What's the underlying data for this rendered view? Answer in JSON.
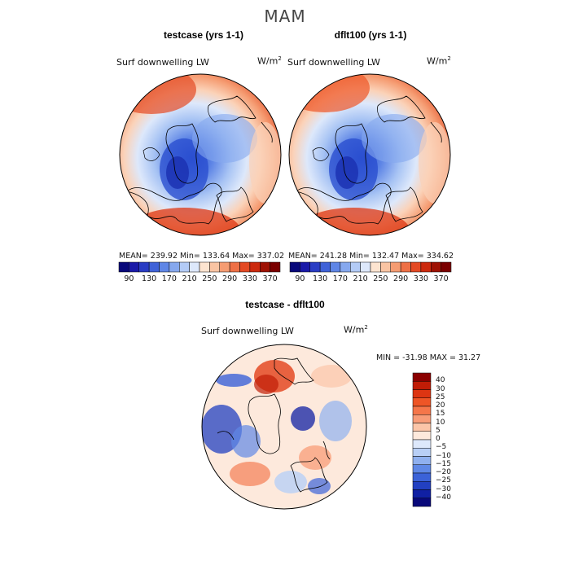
{
  "title": "MAM",
  "panels": [
    {
      "title": "testcase (yrs 1-1)",
      "variable": "Surf downwelling LW",
      "unit_base": "W/m",
      "unit_exp": "2",
      "stats": "MEAN= 239.92    Min= 133.64    Max= 337.02"
    },
    {
      "title": "dflt100 (yrs 1-1)",
      "variable": "Surf downwelling LW",
      "unit_base": "W/m",
      "unit_exp": "2",
      "stats": "MEAN= 241.28    Min= 132.47    Max= 334.62"
    },
    {
      "title": "testcase - dflt100",
      "variable": "Surf downwelling LW",
      "unit_base": "W/m",
      "unit_exp": "2",
      "stats": "MIN = -31.98  MAX =  31.27"
    }
  ],
  "colorbar_top": {
    "ticks": [
      "90",
      "130",
      "170",
      "210",
      "250",
      "290",
      "330",
      "370"
    ],
    "colors": [
      "#08087a",
      "#1a1aa8",
      "#2a3dc4",
      "#3f62d8",
      "#5f86e6",
      "#86a8ee",
      "#b3cbf6",
      "#dde8fb",
      "#fde4d0",
      "#f9c4a3",
      "#f59c72",
      "#ee7046",
      "#e44a24",
      "#cc2a0e",
      "#9e1204",
      "#7a0000"
    ]
  },
  "colorbar_diff": {
    "labels": [
      "40",
      "30",
      "25",
      "20",
      "15",
      "10",
      "5",
      "0",
      "−5",
      "−10",
      "−15",
      "−20",
      "−25",
      "−30",
      "−40"
    ],
    "colors": [
      "#8b0000",
      "#c11c06",
      "#dd3512",
      "#ee5526",
      "#f5764a",
      "#f89c78",
      "#fbc5a8",
      "#fde9dc",
      "#dde8fb",
      "#b8cff6",
      "#8fb0ef",
      "#5f88e6",
      "#3b62d8",
      "#2240c2",
      "#1020a4",
      "#08087a"
    ]
  },
  "chart_data": {
    "type": "heatmap",
    "title": "MAM",
    "panels": [
      {
        "name": "testcase (yrs 1-1)",
        "variable": "Surf downwelling LW",
        "units": "W/m^2",
        "mean": 239.92,
        "min": 133.64,
        "max": 337.02,
        "contour_levels": [
          90,
          130,
          170,
          210,
          250,
          290,
          330,
          370
        ]
      },
      {
        "name": "dflt100 (yrs 1-1)",
        "variable": "Surf downwelling LW",
        "units": "W/m^2",
        "mean": 241.28,
        "min": 132.47,
        "max": 334.62,
        "contour_levels": [
          90,
          130,
          170,
          210,
          250,
          290,
          330,
          370
        ]
      },
      {
        "name": "testcase - dflt100",
        "variable": "Surf downwelling LW",
        "units": "W/m^2",
        "min": -31.98,
        "max": 31.27,
        "contour_levels": [
          -40,
          -30,
          -25,
          -20,
          -15,
          -10,
          -5,
          0,
          5,
          10,
          15,
          20,
          25,
          30,
          40
        ]
      }
    ]
  }
}
